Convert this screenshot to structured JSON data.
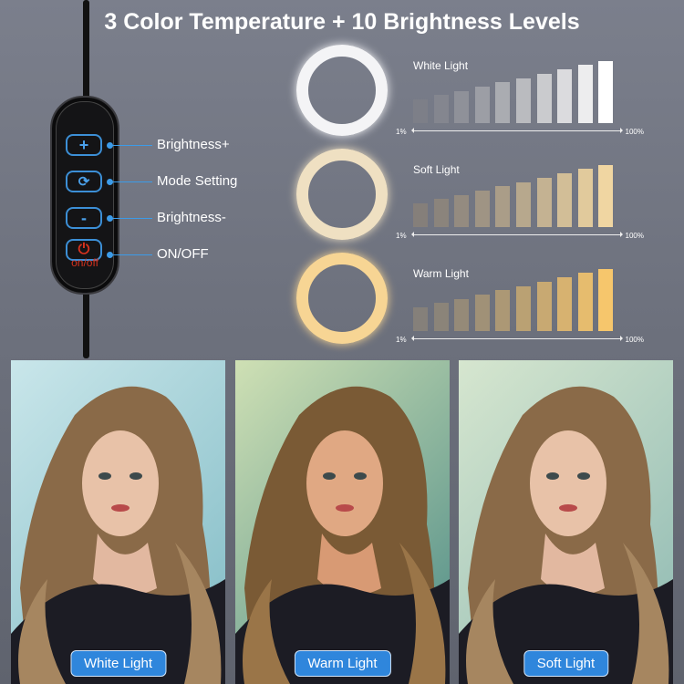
{
  "title": "3 Color Temperature + 10 Brightness Levels",
  "remote": {
    "buttons": [
      {
        "icon": "plus-icon",
        "label": "Brightness+"
      },
      {
        "icon": "cycle-icon",
        "label": "Mode Setting"
      },
      {
        "icon": "minus-icon",
        "label": "Brightness-"
      },
      {
        "icon": "power-icon",
        "label": "ON/OFF"
      }
    ],
    "power_caption": "on/off",
    "accent": "#3c8fd6",
    "power_color": "#d8321e"
  },
  "modes": [
    {
      "name": "White Light",
      "ring_color": "#f4f4f6",
      "bar_colors": [
        "#7d7f88",
        "#ffffff"
      ],
      "min": "1%",
      "max": "100%",
      "levels": 10
    },
    {
      "name": "Soft Light",
      "ring_color": "#efe0c2",
      "bar_colors": [
        "#857f7a",
        "#f0d6a2"
      ],
      "min": "1%",
      "max": "100%",
      "levels": 10
    },
    {
      "name": "Warm Light",
      "ring_color": "#f7d594",
      "bar_colors": [
        "#85807a",
        "#f6c66c"
      ],
      "min": "1%",
      "max": "100%",
      "levels": 10
    }
  ],
  "photos": [
    {
      "label": "White Light",
      "tint": [
        "#c9e6ea",
        "#7fbac4"
      ]
    },
    {
      "label": "Warm Light",
      "tint": [
        "#cfe0b4",
        "#4c8b87"
      ]
    },
    {
      "label": "Soft Light",
      "tint": [
        "#d6e6cf",
        "#8cb8b2"
      ]
    }
  ]
}
